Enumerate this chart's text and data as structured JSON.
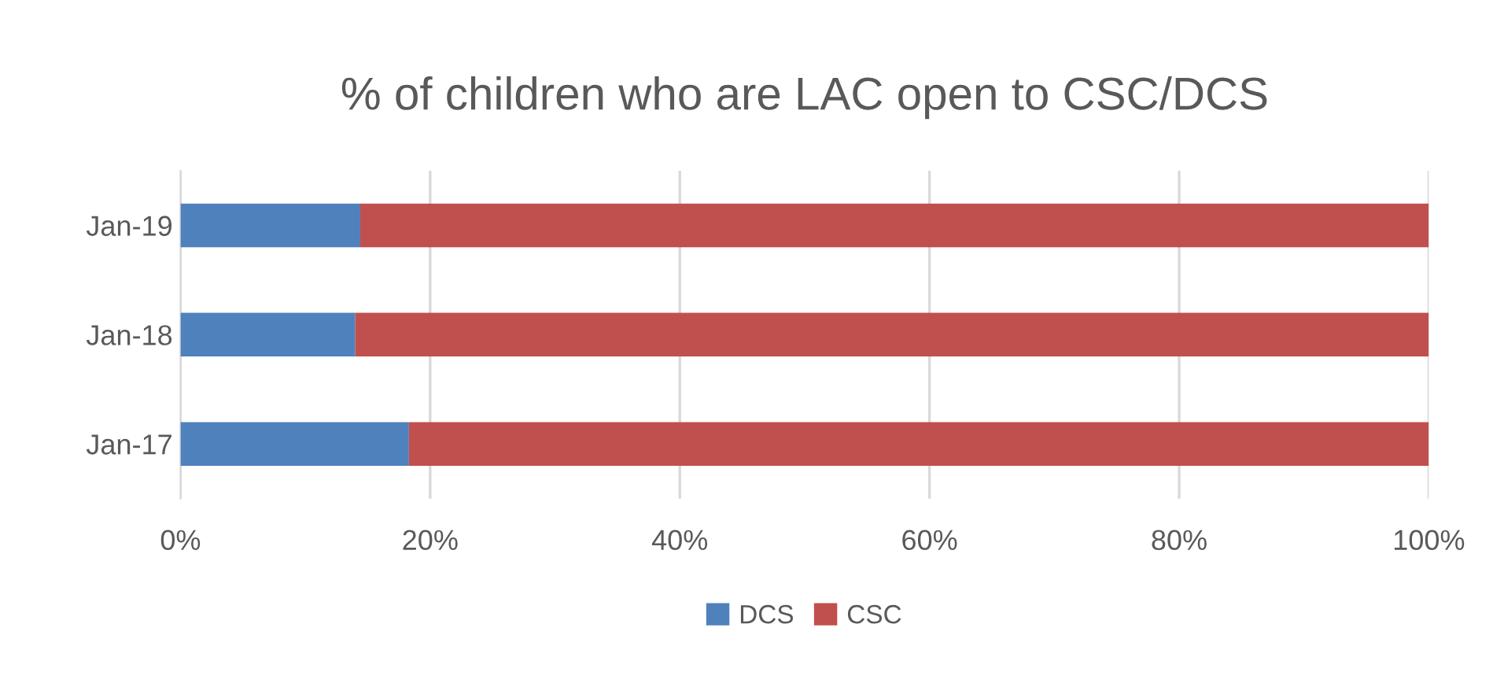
{
  "chart_data": {
    "type": "bar",
    "orientation": "horizontal",
    "stacked": true,
    "title": "% of children who are LAC open to CSC/DCS",
    "categories": [
      "Jan-19",
      "Jan-18",
      "Jan-17"
    ],
    "series": [
      {
        "name": "DCS",
        "color": "#4f81bd",
        "values": [
          14.4,
          14.0,
          18.3
        ]
      },
      {
        "name": "CSC",
        "color": "#c0504d",
        "values": [
          85.6,
          86.0,
          81.7
        ]
      }
    ],
    "xlim": [
      0,
      100
    ],
    "xticks": [
      {
        "value": 0,
        "label": "0%"
      },
      {
        "value": 20,
        "label": "20%"
      },
      {
        "value": 40,
        "label": "40%"
      },
      {
        "value": 60,
        "label": "60%"
      },
      {
        "value": 80,
        "label": "80%"
      },
      {
        "value": 100,
        "label": "100%"
      }
    ],
    "grid": "x",
    "legend": "bottom"
  }
}
